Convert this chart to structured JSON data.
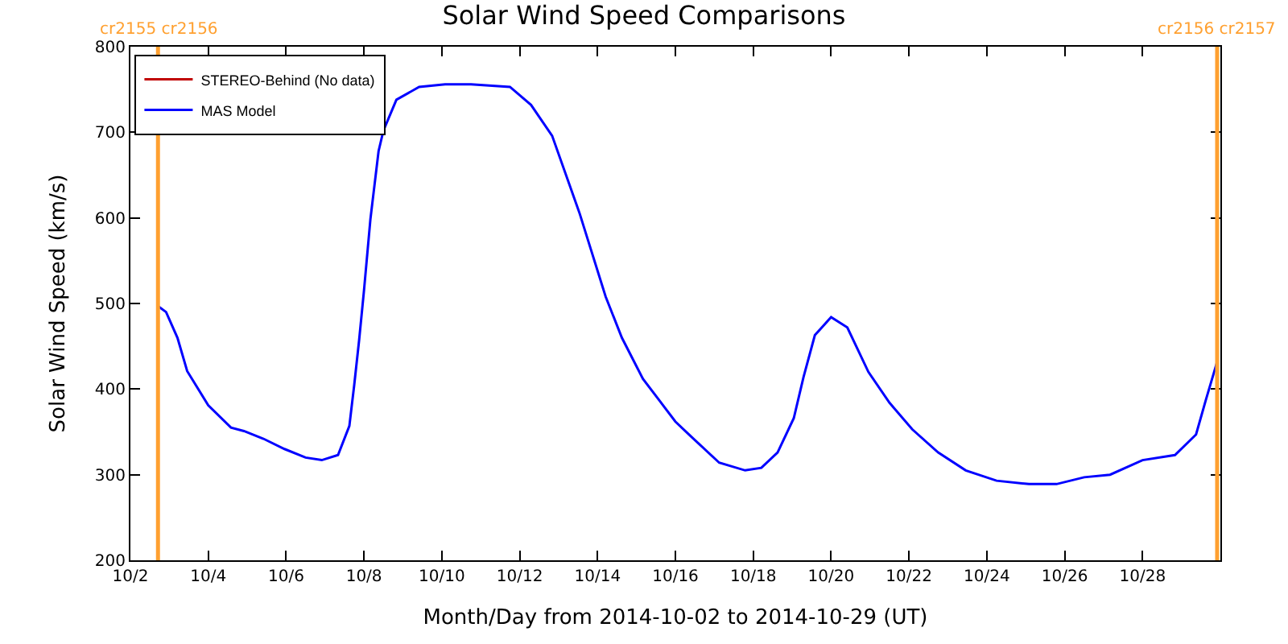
{
  "chart_data": {
    "type": "line",
    "title": "Solar Wind Speed Comparisons",
    "xlabel": "Month/Day from 2014-10-02 to 2014-10-29 (UT)",
    "ylabel": "Solar Wind Speed (km/s)",
    "xlim": [
      "2014-10-02",
      "2014-10-30"
    ],
    "xticks": [
      {
        "value": "2014-10-02",
        "label": "10/2"
      },
      {
        "value": "2014-10-04",
        "label": "10/4"
      },
      {
        "value": "2014-10-06",
        "label": "10/6"
      },
      {
        "value": "2014-10-08",
        "label": "10/8"
      },
      {
        "value": "2014-10-10",
        "label": "10/10"
      },
      {
        "value": "2014-10-12",
        "label": "10/12"
      },
      {
        "value": "2014-10-14",
        "label": "10/14"
      },
      {
        "value": "2014-10-16",
        "label": "10/16"
      },
      {
        "value": "2014-10-18",
        "label": "10/18"
      },
      {
        "value": "2014-10-20",
        "label": "10/20"
      },
      {
        "value": "2014-10-22",
        "label": "10/22"
      },
      {
        "value": "2014-10-24",
        "label": "10/24"
      },
      {
        "value": "2014-10-26",
        "label": "10/26"
      },
      {
        "value": "2014-10-28",
        "label": "10/28"
      }
    ],
    "ylim": [
      200,
      800
    ],
    "yticks": [
      200,
      300,
      400,
      500,
      600,
      700,
      800
    ],
    "legend": "top left",
    "marker": "none",
    "line_style": "solid",
    "series": [
      {
        "name": "STEREO-Behind (No data)",
        "color": "#c00000"
      },
      {
        "name": "MAS Model",
        "color": "#0000ff",
        "x": [
          "2014-10-02T17:00",
          "2014-10-02T22:00",
          "2014-10-03T05:00",
          "2014-10-03T11:00",
          "2014-10-04T00:00",
          "2014-10-04T14:00",
          "2014-10-04T22:00",
          "2014-10-05T10:00",
          "2014-10-05T23:00",
          "2014-10-06T12:00",
          "2014-10-06T22:00",
          "2014-10-07T08:00",
          "2014-10-07T15:00",
          "2014-10-07T18:00",
          "2014-10-07T21:00",
          "2014-10-08T00:00",
          "2014-10-08T04:00",
          "2014-10-08T09:00",
          "2014-10-08T12:00",
          "2014-10-08T20:00",
          "2014-10-09T10:00",
          "2014-10-10T02:00",
          "2014-10-10T18:00",
          "2014-10-11T18:00",
          "2014-10-12T07:00",
          "2014-10-12T20:00",
          "2014-10-13T13:00",
          "2014-10-14T05:00",
          "2014-10-14T15:00",
          "2014-10-15T04:00",
          "2014-10-15T14:00",
          "2014-10-16T00:00",
          "2014-10-16T10:00",
          "2014-10-17T03:00",
          "2014-10-17T19:00",
          "2014-10-18T05:00",
          "2014-10-18T15:00",
          "2014-10-19T01:00",
          "2014-10-19T07:00",
          "2014-10-19T14:00",
          "2014-10-20T00:00",
          "2014-10-20T10:00",
          "2014-10-20T23:00",
          "2014-10-21T12:00",
          "2014-10-22T02:00",
          "2014-10-22T18:00",
          "2014-10-23T11:00",
          "2014-10-24T06:00",
          "2014-10-25T02:00",
          "2014-10-25T19:00",
          "2014-10-26T12:00",
          "2014-10-27T04:00",
          "2014-10-28T00:00",
          "2014-10-28T20:00",
          "2014-10-29T09:00",
          "2014-10-29T15:00",
          "2014-10-29T22:00"
        ],
        "values": [
          497,
          490,
          460,
          421,
          381,
          355,
          351,
          342,
          330,
          320,
          317,
          323,
          357,
          405,
          457,
          515,
          599,
          678,
          702,
          738,
          753,
          756,
          756,
          753,
          732,
          696,
          605,
          508,
          460,
          412,
          387,
          362,
          344,
          314,
          305,
          308,
          326,
          366,
          414,
          463,
          484,
          472,
          420,
          384,
          353,
          326,
          305,
          293,
          289,
          289,
          297,
          300,
          317,
          323,
          347,
          387,
          432
        ]
      }
    ],
    "ref_lines": [
      {
        "axis": "x",
        "value": "2014-10-02T17:00",
        "label": "cr2155 cr2156",
        "color": "#ffa030"
      },
      {
        "axis": "x",
        "value": "2014-10-29T22:00",
        "label": "cr2156 cr2157",
        "color": "#ffa030"
      }
    ]
  }
}
